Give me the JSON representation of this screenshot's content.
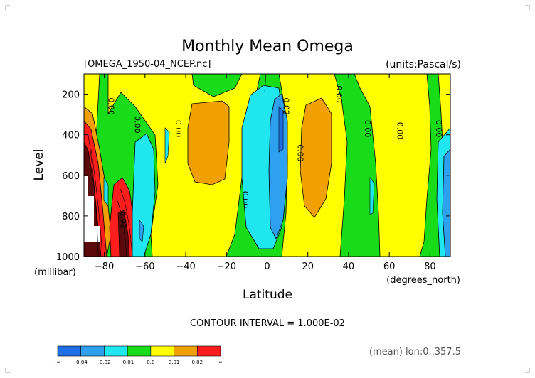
{
  "chart_data": {
    "type": "heatmap",
    "title": "Monthly Mean Omega",
    "file_label": "[OMEGA_1950-04_NCEP.nc]",
    "units_label": "(units:Pascal/s)",
    "xlabel": "Latitude",
    "x_unit_label": "(degrees_north)",
    "ylabel": "Level",
    "y_unit_label": "(millibar)",
    "xlim": [
      -90,
      90
    ],
    "ylim": [
      1000,
      100
    ],
    "x_ticks": [
      -80,
      -60,
      -40,
      -20,
      0,
      20,
      40,
      60,
      80
    ],
    "y_ticks": [
      200,
      400,
      600,
      800,
      1000
    ],
    "contour_interval_text": "CONTOUR INTERVAL = 1.000E-02",
    "colorbar": {
      "levels": [
        "-∞",
        "-0.04",
        "-0.02",
        "-0.01",
        "0.0",
        "0.01",
        "0.02",
        "∞"
      ],
      "colors": [
        "#1e6ee6",
        "#2da0f0",
        "#20e6f0",
        "#18dc18",
        "#ffff00",
        "#f0a000",
        "#ff1e1e"
      ]
    },
    "contour_labels": [
      {
        "text": "0.00",
        "lat": -78,
        "level": 260
      },
      {
        "text": "0.00",
        "lat": -65,
        "level": 350
      },
      {
        "text": "0.00",
        "lat": -45,
        "level": 370
      },
      {
        "text": "0.02",
        "lat": 8,
        "level": 260
      },
      {
        "text": "0.00",
        "lat": 15,
        "level": 490
      },
      {
        "text": "0.00",
        "lat": 34,
        "level": 200
      },
      {
        "text": "0.00",
        "lat": 48,
        "level": 370
      },
      {
        "text": "0.00",
        "lat": 64,
        "level": 380
      },
      {
        "text": "0.00",
        "lat": 83,
        "level": 370
      },
      {
        "text": "0.00",
        "lat": -12,
        "level": 720
      },
      {
        "text": "0.02",
        "lat": -72,
        "level": 820
      }
    ],
    "footer_note": "(mean) lon:0..357.5"
  }
}
